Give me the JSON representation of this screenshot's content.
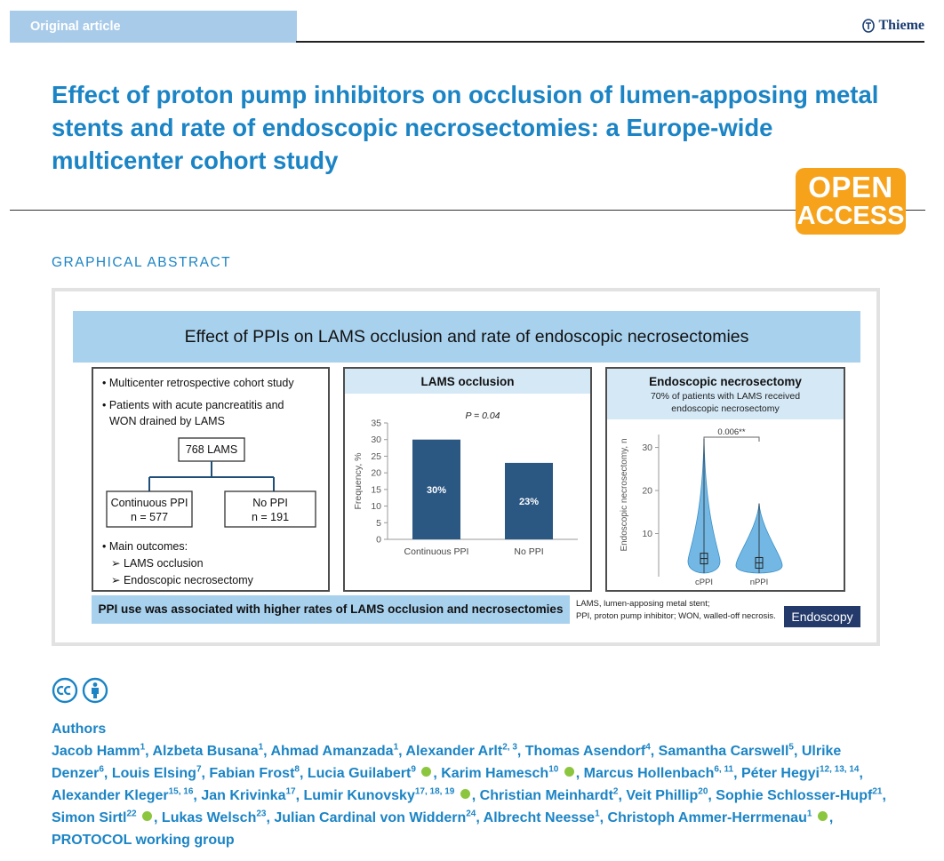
{
  "header": {
    "tag": "Original article",
    "publisher": "Thieme"
  },
  "title": "Effect of proton pump inhibitors on occlusion of lumen-apposing metal stents and rate of endoscopic necrosectomies: a Europe-wide multicenter cohort study",
  "open_access": {
    "line1": "OPEN",
    "line2": "ACCESS"
  },
  "graphical_abstract": {
    "label": "GRAPHICAL ABSTRACT",
    "banner": "Effect of PPIs on LAMS occlusion and rate of endoscopic necrosectomies",
    "left_panel": {
      "bullet1": "• Multicenter retrospective cohort study",
      "bullet2_line1": "• Patients with acute pancreatitis and",
      "bullet2_line2": "WON drained by LAMS",
      "total": "768 LAMS",
      "group1_name": "Continuous PPI",
      "group1_n": "n = 577",
      "group2_name": "No PPI",
      "group2_n": "n = 191",
      "outcomes_heading": "• Main outcomes:",
      "outcome1": "➢  LAMS occlusion",
      "outcome2": "➢  Endoscopic necrosectomy"
    },
    "bottom_banner": "PPI use was associated with higher rates of LAMS occlusion and necrosectomies",
    "footnote_line1": "LAMS, lumen-apposing metal stent;",
    "footnote_line2": "PPI, proton pump inhibitor; WON, walled-off necrosis.",
    "journal": "Endoscopy"
  },
  "chart_data": [
    {
      "type": "bar",
      "title": "LAMS occlusion",
      "annotation": "P = 0.04",
      "categories": [
        "Continuous PPI",
        "No PPI"
      ],
      "values": [
        30,
        23
      ],
      "data_labels": [
        "30%",
        "23%"
      ],
      "ylabel": "Frequency, %",
      "ylim": [
        0,
        35
      ],
      "yticks": [
        0,
        5,
        10,
        15,
        20,
        25,
        30,
        35
      ],
      "bar_color": "#2b5783"
    },
    {
      "type": "violin",
      "title": "Endoscopic necrosectomy",
      "subtitle_line1": "70% of patients with LAMS received",
      "subtitle_line2": "endoscopic necrosectomy",
      "annotation": "0.006**",
      "categories": [
        "cPPI",
        "nPPI"
      ],
      "ylabel": "Endoscopic necrosectomy, n",
      "ylim": [
        0,
        33
      ],
      "yticks": [
        10,
        20,
        30
      ],
      "max_values": [
        32,
        17
      ],
      "median_values": [
        4,
        3
      ],
      "color": "#5aacdf"
    }
  ],
  "license_icons": [
    "cc-icon",
    "by-icon"
  ],
  "authors_heading": "Authors"
}
